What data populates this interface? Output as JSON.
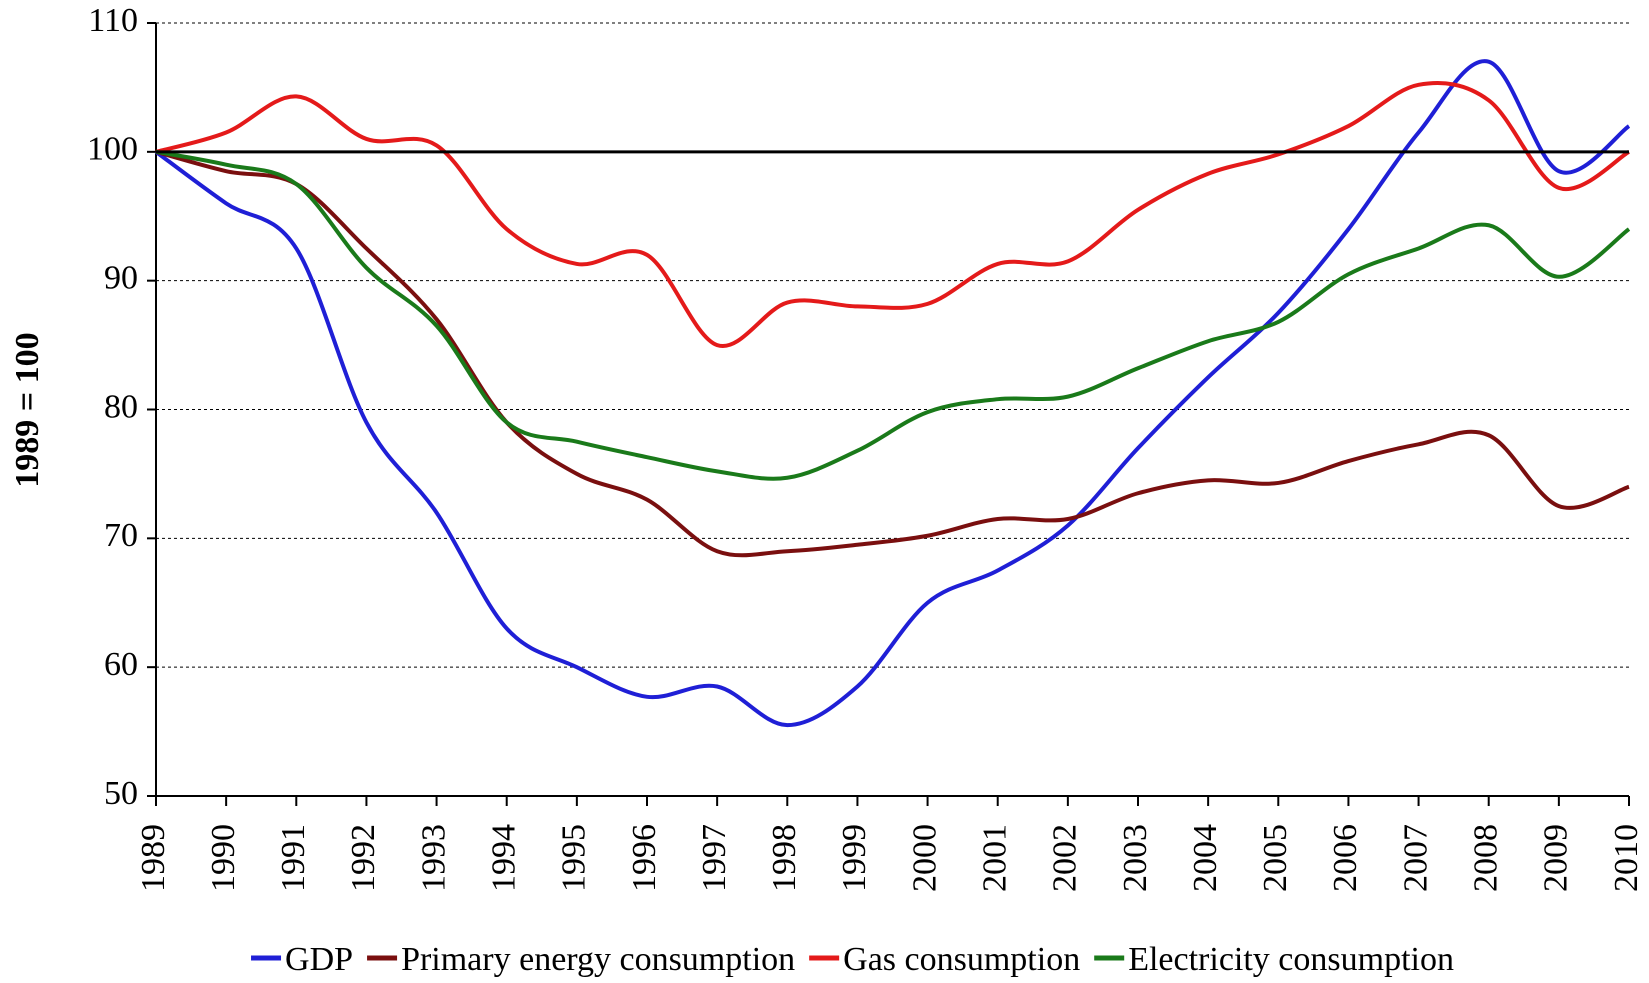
{
  "chart_data": {
    "type": "line",
    "y_label": "1989 = 100",
    "x": [
      1989,
      1990,
      1991,
      1992,
      1993,
      1994,
      1995,
      1996,
      1997,
      1998,
      1999,
      2000,
      2001,
      2002,
      2003,
      2004,
      2005,
      2006,
      2007,
      2008,
      2009,
      2010
    ],
    "series": [
      {
        "name": "GDP",
        "color": "#1f1fd6",
        "values": [
          100,
          96,
          92.5,
          79,
          72,
          63,
          60,
          57.7,
          58.5,
          55.5,
          58.5,
          65,
          67.5,
          71,
          77,
          82.5,
          87.5,
          94,
          101.5,
          107,
          98.5,
          102
        ]
      },
      {
        "name": "Primary energy consumption",
        "color": "#7a0f0f",
        "values": [
          100,
          98.5,
          97.5,
          92.5,
          87,
          79,
          75,
          73,
          69,
          69,
          69.5,
          70.2,
          71.5,
          71.5,
          73.5,
          74.5,
          74.3,
          76,
          77.3,
          78,
          72.5,
          74
        ]
      },
      {
        "name": "Gas consumption",
        "color": "#e41a1a",
        "values": [
          100,
          101.5,
          104.3,
          101,
          100.5,
          94,
          91.3,
          92,
          85,
          88.3,
          88,
          88.2,
          91.3,
          91.5,
          95.5,
          98.3,
          99.8,
          102,
          105.2,
          104,
          97.2,
          100
        ]
      },
      {
        "name": "Electricity consumption",
        "color": "#1a7a1a",
        "values": [
          100,
          99,
          97.5,
          91,
          86.5,
          79,
          77.5,
          76.3,
          75.2,
          74.7,
          76.8,
          79.8,
          80.8,
          81,
          83.2,
          85.3,
          86.8,
          90.5,
          92.5,
          94.3,
          90.3,
          94
        ]
      }
    ],
    "xlim": [
      1989,
      2010
    ],
    "xticks": [
      1989,
      1990,
      1991,
      1992,
      1993,
      1994,
      1995,
      1996,
      1997,
      1998,
      1999,
      2000,
      2001,
      2002,
      2003,
      2004,
      2005,
      2006,
      2007,
      2008,
      2009,
      2010
    ],
    "ylim": [
      50,
      110
    ],
    "yticks": [
      50,
      60,
      70,
      80,
      90,
      100,
      110
    ],
    "reference_line": 100,
    "grid": true,
    "legend": "bottom"
  }
}
